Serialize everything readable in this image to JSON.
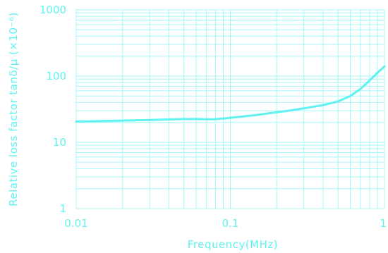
{
  "chart_data": {
    "type": "line",
    "xlabel": "Frequency(MHz)",
    "ylabel": "Relative loss factor tanδ/μ (×10⁻⁶)",
    "x_scale": "log",
    "y_scale": "log",
    "xlim": [
      0.01,
      1
    ],
    "ylim": [
      1,
      1000
    ],
    "x_ticks": [
      {
        "value": 0.01,
        "label": "0.01"
      },
      {
        "value": 0.1,
        "label": "0.1"
      },
      {
        "value": 1,
        "label": "1"
      }
    ],
    "y_ticks": [
      {
        "value": 1,
        "label": "1"
      },
      {
        "value": 10,
        "label": "10"
      },
      {
        "value": 100,
        "label": "100"
      },
      {
        "value": 1000,
        "label": "1000"
      }
    ],
    "grid": true,
    "legend": "none",
    "colors": {
      "line": "#60F2F2",
      "grid": "#A6F7F7",
      "text": "#5FF2F2"
    },
    "series": [
      {
        "x": [
          0.01,
          0.015,
          0.02,
          0.03,
          0.04,
          0.05,
          0.06,
          0.07,
          0.08,
          0.09,
          0.1,
          0.12,
          0.15,
          0.2,
          0.25,
          0.3,
          0.4,
          0.5,
          0.6,
          0.7,
          0.8,
          0.9,
          1.0
        ],
        "y": [
          20.6,
          21.0,
          21.3,
          21.8,
          22.2,
          22.5,
          22.5,
          22.3,
          22.4,
          22.9,
          23.5,
          24.5,
          26.0,
          28.5,
          30.5,
          32.6,
          36.5,
          41.5,
          50.0,
          64.0,
          86.0,
          112.0,
          140.0
        ]
      }
    ]
  }
}
